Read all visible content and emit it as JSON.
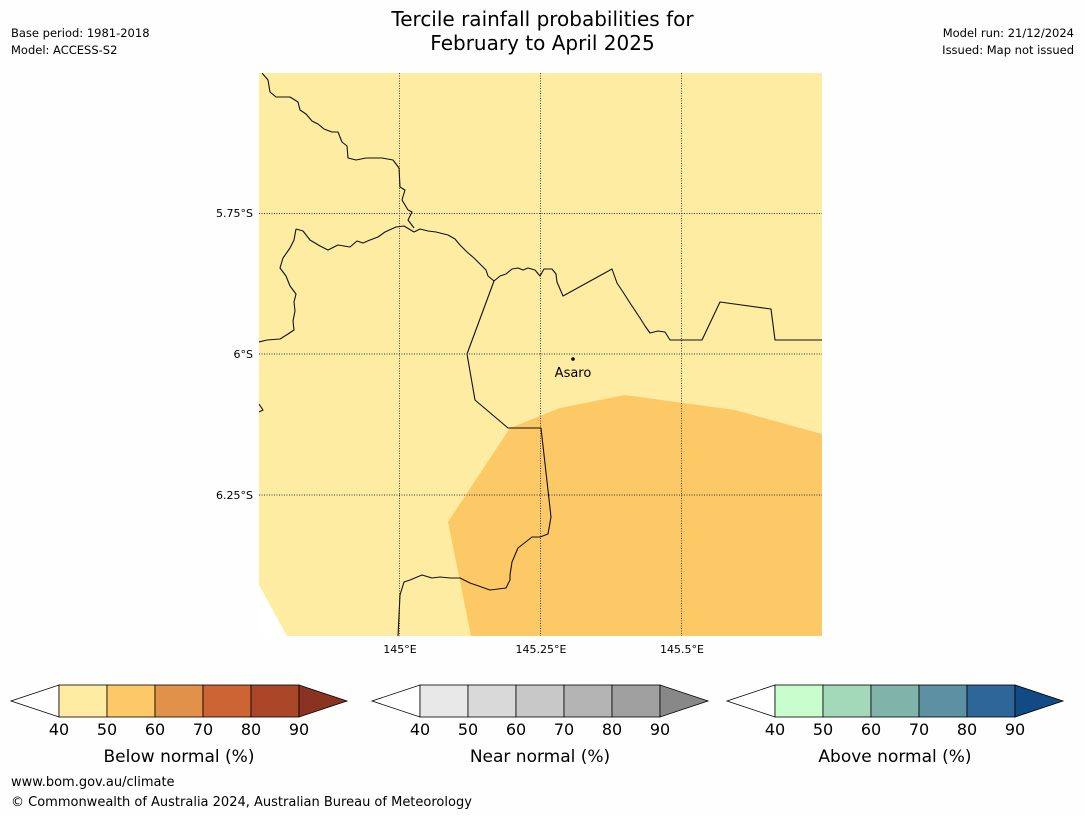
{
  "header": {
    "title_line1": "Tercile rainfall probabilities for",
    "title_line2": "February to April 2025",
    "base_period": "Base period: 1981-2018",
    "model": "Model: ACCESS-S2",
    "model_run": "Model run: 21/12/2024",
    "issued": "Issued: Map not issued"
  },
  "map": {
    "lat_ticks": [
      "5.75°S",
      "6°S",
      "6.25°S"
    ],
    "lon_ticks": [
      "145°E",
      "145.25°E",
      "145.5°E"
    ],
    "place": "Asaro",
    "colors": {
      "base_fill": "#feeca2",
      "below_50_60_zone": "#fdc967"
    }
  },
  "colorbars": [
    {
      "label": "Below normal (%)",
      "ticks": [
        "40",
        "50",
        "60",
        "70",
        "80",
        "90"
      ],
      "colors": [
        "#ffffff",
        "#feeca2",
        "#fdc967",
        "#e1914a",
        "#cc6434",
        "#ab4728",
        "#8b3220"
      ]
    },
    {
      "label": "Near normal (%)",
      "ticks": [
        "40",
        "50",
        "60",
        "70",
        "80",
        "90"
      ],
      "colors": [
        "#ffffff",
        "#e8e8e8",
        "#d9d9d9",
        "#c8c8c8",
        "#b4b4b4",
        "#a0a0a0",
        "#888888"
      ]
    },
    {
      "label": "Above normal (%)",
      "ticks": [
        "40",
        "50",
        "60",
        "70",
        "80",
        "90"
      ],
      "colors": [
        "#ffffff",
        "#c7fdcc",
        "#a3d9b8",
        "#80b4ab",
        "#5b91a0",
        "#2f6699",
        "#114a84"
      ]
    }
  ],
  "footer": {
    "url": "www.bom.gov.au/climate",
    "copyright": "© Commonwealth of Australia 2024, Australian Bureau of Meteorology"
  }
}
